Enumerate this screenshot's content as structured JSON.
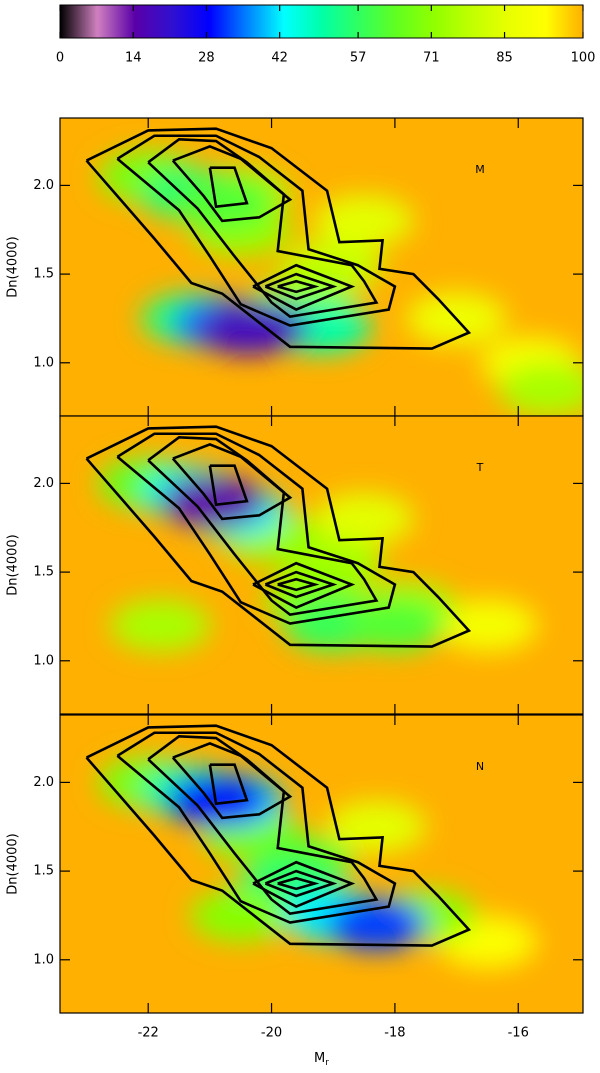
{
  "chart_data": {
    "type": "contour",
    "colorbar": {
      "clim": [
        0,
        100
      ],
      "ticks": [
        0,
        14,
        28,
        42,
        57,
        71,
        85,
        100
      ]
    },
    "colormap": [
      "#000000",
      "#d080c0",
      "#5a00a8",
      "#3010d0",
      "#0000ff",
      "#0080ff",
      "#00ffff",
      "#00ffa8",
      "#30ff60",
      "#60ff20",
      "#90ff00",
      "#c0ff00",
      "#e8ff00",
      "#ffff00",
      "#ffb000"
    ],
    "fill_value": 100,
    "xlim": [
      -23.43,
      -14.95
    ],
    "xticks": [
      -22,
      -20,
      -18,
      -16
    ],
    "xlabel": "M",
    "xlabel_sub": "r",
    "ylim": [
      0.7,
      2.38
    ],
    "yticks": [
      {
        "value": 1.0,
        "label": "1.0"
      },
      {
        "value": 1.5,
        "label": "1.5"
      },
      {
        "value": 2.0,
        "label": "2.0"
      }
    ],
    "ylabel": "Dn(4000)",
    "contours": [
      {
        "x": [
          -23.0,
          -22.0,
          -20.9,
          -20.0,
          -19.1,
          -18.9,
          -18.2,
          -18.25,
          -17.7,
          -17.3,
          -16.8,
          -17.4,
          -19.7,
          -20.8,
          -21.3,
          -21.9,
          -23.0
        ],
        "y": [
          2.14,
          2.31,
          2.32,
          2.21,
          1.97,
          1.68,
          1.69,
          1.53,
          1.5,
          1.36,
          1.17,
          1.08,
          1.09,
          1.39,
          1.45,
          1.7,
          2.14
        ]
      },
      {
        "x": [
          -22.5,
          -21.9,
          -20.9,
          -20.2,
          -19.5,
          -19.4,
          -18.6,
          -18.0,
          -18.1,
          -19.7,
          -20.5,
          -21.0,
          -21.5,
          -22.5
        ],
        "y": [
          2.15,
          2.28,
          2.28,
          2.16,
          1.97,
          1.64,
          1.55,
          1.43,
          1.3,
          1.21,
          1.33,
          1.6,
          1.86,
          2.15
        ]
      },
      {
        "x": [
          -22.0,
          -21.5,
          -20.9,
          -20.4,
          -19.8,
          -19.9,
          -18.7,
          -18.5,
          -18.3,
          -19.7,
          -20.0,
          -20.6,
          -21.2,
          -22.0
        ],
        "y": [
          2.13,
          2.26,
          2.25,
          2.13,
          1.95,
          1.63,
          1.55,
          1.46,
          1.34,
          1.26,
          1.34,
          1.6,
          1.87,
          2.13
        ]
      },
      {
        "x": [
          -21.6,
          -21.0,
          -20.5,
          -19.7,
          -20.2,
          -20.8,
          -21.1,
          -21.6
        ],
        "y": [
          2.14,
          2.22,
          2.15,
          1.92,
          1.82,
          1.8,
          1.94,
          2.14
        ]
      },
      {
        "x": [
          -21.0,
          -20.6,
          -20.4,
          -20.9,
          -21.0
        ],
        "y": [
          2.1,
          2.1,
          1.9,
          1.88,
          2.1
        ]
      },
      {
        "x": [
          -20.3,
          -19.6,
          -18.7,
          -19.6,
          -20.3
        ],
        "y": [
          1.43,
          1.55,
          1.43,
          1.3,
          1.43
        ]
      },
      {
        "x": [
          -20.1,
          -19.6,
          -19.0,
          -19.6,
          -20.1
        ],
        "y": [
          1.43,
          1.5,
          1.43,
          1.36,
          1.43
        ]
      },
      {
        "x": [
          -19.9,
          -19.6,
          -19.3,
          -19.6,
          -19.9
        ],
        "y": [
          1.43,
          1.46,
          1.43,
          1.4,
          1.43
        ]
      }
    ],
    "panels": [
      {
        "label": "M",
        "field": {
          "x": [
            -17.0,
            -15.8,
            -15.5,
            -19.0,
            -18.5,
            -20.5,
            -20.5,
            -19.5,
            -22.0,
            -21.3,
            -20.8,
            -21.3,
            -19.2,
            -20.8,
            -20.2,
            -20.4
          ],
          "y": [
            1.25,
            1.0,
            0.85,
            1.55,
            1.8,
            1.75,
            1.95,
            1.35,
            2.05,
            1.95,
            1.9,
            1.25,
            1.2,
            1.22,
            1.2,
            1.19
          ],
          "values": [
            88,
            90,
            75,
            80,
            85,
            72,
            75,
            72,
            68,
            55,
            62,
            55,
            50,
            35,
            22,
            18
          ]
        }
      },
      {
        "label": "T",
        "field": {
          "x": [
            -16.5,
            -18.5,
            -19.0,
            -20.0,
            -19.3,
            -17.8,
            -21.8,
            -19.0,
            -18.0,
            -22.0,
            -21.3,
            -20.6,
            -21.0,
            -20.9
          ],
          "y": [
            1.2,
            1.8,
            1.55,
            1.7,
            1.35,
            1.3,
            1.2,
            1.2,
            1.2,
            2.0,
            1.95,
            1.85,
            1.9,
            1.9
          ],
          "values": [
            90,
            85,
            75,
            72,
            70,
            75,
            75,
            58,
            62,
            65,
            45,
            42,
            28,
            14
          ]
        }
      },
      {
        "label": "N",
        "field": {
          "x": [
            -16.5,
            -18.3,
            -20.3,
            -19.5,
            -19.8,
            -17.5,
            -20.5,
            -22.0,
            -21.3,
            -20.6,
            -20.9,
            -19.0,
            -18.3
          ],
          "y": [
            1.1,
            1.75,
            1.7,
            1.55,
            1.4,
            1.25,
            1.25,
            2.0,
            1.95,
            1.9,
            1.9,
            1.25,
            1.2
          ],
          "values": [
            92,
            85,
            68,
            62,
            55,
            70,
            70,
            68,
            50,
            40,
            28,
            42,
            32
          ]
        }
      }
    ]
  }
}
